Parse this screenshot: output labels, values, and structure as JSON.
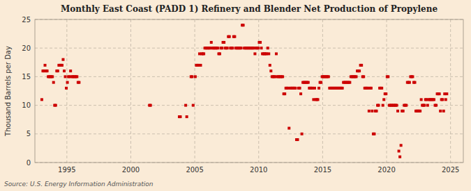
{
  "chart_data": {
    "type": "scatter",
    "title": "Monthly East Coast (PADD 1) Refinery and Blender Net Production of Propylene",
    "ylabel": "Thousand Barrels per Day",
    "source": "Source: U.S. Energy Information Administration",
    "color": "#cc0000",
    "marker": "square",
    "grid": true,
    "xlim": [
      1992.5,
      2026.0
    ],
    "ylim": [
      0,
      25
    ],
    "xticks": [
      1995,
      2000,
      2005,
      2010,
      2015,
      2020,
      2025
    ],
    "yticks": [
      0,
      5,
      10,
      15,
      20,
      25
    ],
    "x": [
      1993.0416666666667,
      1993.125,
      1993.2083333333333,
      1993.2916666666667,
      1993.375,
      1993.4583333333333,
      1993.5416666666667,
      1993.625,
      1993.7083333333333,
      1993.7916666666667,
      1993.875,
      1993.9583333333333,
      1994.0416666666667,
      1994.125,
      1994.2083333333333,
      1994.2916666666667,
      1994.375,
      1994.4583333333333,
      1994.5416666666667,
      1994.625,
      1994.7083333333333,
      1994.7916666666667,
      1994.875,
      1994.9583333333333,
      1995.0416666666667,
      1995.125,
      1995.2083333333333,
      1995.2916666666667,
      1995.375,
      1995.4583333333333,
      1995.5416666666667,
      1995.625,
      1995.7083333333333,
      1995.7916666666667,
      1995.875,
      1995.9583333333333,
      2001.4583333333333,
      2001.5416666666667,
      2003.7916666666667,
      2003.875,
      2004.2916666666667,
      2004.375,
      2004.7083333333333,
      2004.7916666666667,
      2004.875,
      2005.0416666666667,
      2005.125,
      2005.2083333333333,
      2005.2916666666667,
      2005.375,
      2005.4583333333333,
      2005.5416666666667,
      2005.625,
      2005.7083333333333,
      2005.7916666666667,
      2005.875,
      2005.9583333333333,
      2006.0416666666667,
      2006.125,
      2006.2083333333333,
      2006.2916666666667,
      2006.375,
      2006.4583333333333,
      2006.5416666666667,
      2006.625,
      2006.7083333333333,
      2006.7916666666667,
      2006.875,
      2006.9583333333333,
      2007.0416666666667,
      2007.125,
      2007.2083333333333,
      2007.2916666666667,
      2007.375,
      2007.4583333333333,
      2007.5416666666667,
      2007.625,
      2007.7083333333333,
      2007.7916666666667,
      2007.875,
      2007.9583333333333,
      2008.0416666666667,
      2008.125,
      2008.2083333333333,
      2008.2916666666667,
      2008.375,
      2008.4583333333333,
      2008.5416666666667,
      2008.625,
      2008.7083333333333,
      2008.7916666666667,
      2008.875,
      2008.9583333333333,
      2009.0416666666667,
      2009.125,
      2009.2083333333333,
      2009.2916666666667,
      2009.375,
      2009.4583333333333,
      2009.5416666666667,
      2009.625,
      2009.7083333333333,
      2009.7916666666667,
      2009.875,
      2009.9583333333333,
      2010.0416666666667,
      2010.125,
      2010.2083333333333,
      2010.2916666666667,
      2010.375,
      2010.4583333333333,
      2010.5416666666667,
      2010.625,
      2010.7083333333333,
      2010.7916666666667,
      2010.875,
      2010.9583333333333,
      2011.0416666666667,
      2011.125,
      2011.2083333333333,
      2011.2916666666667,
      2011.375,
      2011.4583333333333,
      2011.5416666666667,
      2011.625,
      2011.7083333333333,
      2011.7916666666667,
      2011.875,
      2011.9583333333333,
      2012.0416666666667,
      2012.125,
      2012.2083333333333,
      2012.2916666666667,
      2012.375,
      2012.4583333333333,
      2012.5416666666667,
      2012.625,
      2012.7083333333333,
      2012.7916666666667,
      2012.875,
      2012.9583333333333,
      2013.0416666666667,
      2013.125,
      2013.2083333333333,
      2013.2916666666667,
      2013.375,
      2013.4583333333333,
      2013.5416666666667,
      2013.625,
      2013.7083333333333,
      2013.7916666666667,
      2013.875,
      2013.9583333333333,
      2014.0416666666667,
      2014.125,
      2014.2083333333333,
      2014.2916666666667,
      2014.375,
      2014.4583333333333,
      2014.5416666666667,
      2014.625,
      2014.7083333333333,
      2014.7916666666667,
      2014.875,
      2014.9583333333333,
      2015.0416666666667,
      2015.125,
      2015.2083333333333,
      2015.2916666666667,
      2015.375,
      2015.4583333333333,
      2015.5416666666667,
      2015.625,
      2015.7083333333333,
      2015.7916666666667,
      2015.875,
      2015.9583333333333,
      2016.0416666666667,
      2016.125,
      2016.2083333333333,
      2016.2916666666667,
      2016.375,
      2016.4583333333333,
      2016.5416666666667,
      2016.625,
      2016.7083333333333,
      2016.7916666666667,
      2016.875,
      2016.9583333333333,
      2017.0416666666667,
      2017.125,
      2017.2083333333333,
      2017.2916666666667,
      2017.375,
      2017.4583333333333,
      2017.5416666666667,
      2017.625,
      2017.7083333333333,
      2017.7916666666667,
      2017.875,
      2017.9583333333333,
      2018.0416666666667,
      2018.125,
      2018.2083333333333,
      2018.2916666666667,
      2018.375,
      2018.4583333333333,
      2018.5416666666667,
      2018.625,
      2018.7083333333333,
      2018.7916666666667,
      2018.875,
      2018.9583333333333,
      2019.0416666666667,
      2019.125,
      2019.2083333333333,
      2019.2916666666667,
      2019.375,
      2019.4583333333333,
      2019.5416666666667,
      2019.625,
      2019.7083333333333,
      2019.7916666666667,
      2019.875,
      2019.9583333333333,
      2020.0416666666667,
      2020.125,
      2020.2083333333333,
      2020.2916666666667,
      2020.375,
      2020.4583333333333,
      2020.5416666666667,
      2020.625,
      2020.7083333333333,
      2020.7916666666667,
      2020.875,
      2020.9583333333333,
      2021.0416666666667,
      2021.125,
      2021.2083333333333,
      2021.2916666666667,
      2021.375,
      2021.4583333333333,
      2021.5416666666667,
      2021.625,
      2021.7083333333333,
      2021.7916666666667,
      2021.875,
      2021.9583333333333,
      2022.0416666666667,
      2022.125,
      2022.2083333333333,
      2022.2916666666667,
      2022.375,
      2022.4583333333333,
      2022.5416666666667,
      2022.625,
      2022.7083333333333,
      2022.7916666666667,
      2022.875,
      2022.9583333333333,
      2023.0416666666667,
      2023.125,
      2023.2083333333333,
      2023.2916666666667,
      2023.375,
      2023.4583333333333,
      2023.5416666666667,
      2023.625,
      2023.7083333333333,
      2023.7916666666667,
      2023.875,
      2023.9583333333333,
      2024.0416666666667,
      2024.125,
      2024.2083333333333,
      2024.2916666666667,
      2024.375,
      2024.4583333333333,
      2024.5416666666667,
      2024.625,
      2024.7083333333333
    ],
    "values": [
      11,
      16,
      16,
      17,
      16,
      16,
      15,
      15,
      15,
      15,
      15,
      14,
      10,
      10,
      16,
      16,
      17,
      17,
      17,
      17,
      18,
      16,
      15,
      13,
      14,
      15,
      15,
      16,
      15,
      15,
      15,
      15,
      15,
      15,
      14,
      14,
      10,
      10,
      8,
      8,
      10,
      8,
      15,
      15,
      10,
      15,
      17,
      17,
      17,
      19,
      17,
      19,
      19,
      19,
      20,
      20,
      20,
      20,
      20,
      20,
      21,
      20,
      20,
      20,
      20,
      20,
      20,
      19,
      19,
      20,
      20,
      21,
      21,
      20,
      20,
      20,
      22,
      22,
      20,
      20,
      20,
      22,
      22,
      20,
      20,
      20,
      20,
      20,
      20,
      24,
      24,
      20,
      20,
      20,
      20,
      20,
      20,
      20,
      20,
      20,
      20,
      19,
      20,
      20,
      20,
      21,
      21,
      20,
      19,
      19,
      19,
      19,
      19,
      20,
      19,
      17,
      16,
      15,
      15,
      15,
      15,
      19,
      15,
      15,
      15,
      15,
      15,
      15,
      12,
      12,
      13,
      13,
      13,
      6,
      13,
      13,
      13,
      13,
      13,
      13,
      4,
      4,
      13,
      13,
      12,
      5,
      14,
      14,
      14,
      14,
      14,
      14,
      13,
      13,
      13,
      13,
      11,
      13,
      11,
      11,
      11,
      13,
      14,
      14,
      15,
      15,
      15,
      15,
      15,
      15,
      15,
      13,
      13,
      13,
      13,
      13,
      13,
      13,
      13,
      13,
      13,
      13,
      13,
      13,
      14,
      14,
      14,
      14,
      14,
      14,
      14,
      15,
      15,
      15,
      15,
      15,
      15,
      16,
      16,
      16,
      17,
      17,
      15,
      15,
      13,
      13,
      13,
      13,
      9,
      13,
      13,
      9,
      5,
      5,
      9,
      9,
      10,
      10,
      13,
      13,
      13,
      10,
      11,
      12,
      12,
      15,
      15,
      10,
      10,
      10,
      10,
      10,
      10,
      10,
      10,
      9,
      2,
      1,
      3,
      9,
      9,
      10,
      10,
      10,
      14,
      14,
      14,
      15,
      15,
      15,
      14,
      14,
      9,
      9,
      9,
      9,
      9,
      11,
      10,
      10,
      10,
      11,
      11,
      10,
      11,
      11,
      11,
      11,
      11,
      11,
      10,
      10,
      12,
      12,
      12,
      9,
      11,
      11,
      9,
      12,
      11,
      12
    ]
  }
}
